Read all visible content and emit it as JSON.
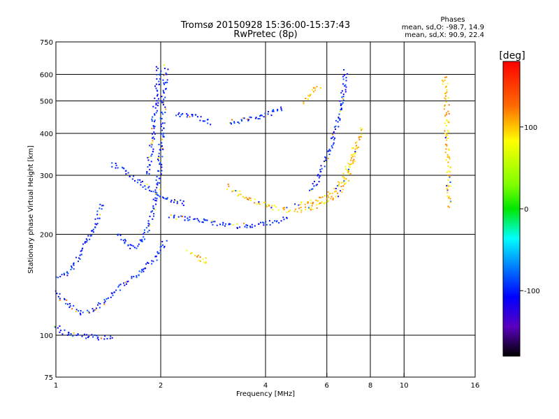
{
  "chart_data": {
    "type": "scatter",
    "title": "Tromsø 20150928 15:36:00-15:37:43",
    "subtitle": "RwPretec (8p)",
    "xlabel": "Frequency [MHz]",
    "ylabel": "Stationary phase Virtual Height [km]",
    "x_scale": "log",
    "y_scale": "log",
    "xlim": [
      1,
      16
    ],
    "ylim": [
      75,
      750
    ],
    "x_ticks": [
      1,
      2,
      4,
      6,
      8,
      10,
      16
    ],
    "x_tick_labels": [
      "1",
      "2",
      "4",
      "6",
      "8",
      "10",
      "16"
    ],
    "y_ticks": [
      75,
      100,
      200,
      300,
      400,
      500,
      600,
      750
    ],
    "y_tick_labels": [
      "75",
      "100",
      "200",
      "300",
      "400",
      "500",
      "600",
      "750"
    ],
    "grid": true,
    "stats": {
      "heading": "Phases",
      "line_o": "mean, sd,O: -98.7, 14.9",
      "line_x": "mean, sd,X:  90.9, 22.4"
    },
    "colorbar": {
      "label": "[deg]",
      "range": [
        -180,
        180
      ],
      "ticks": [
        100,
        0,
        -100
      ],
      "tick_labels": [
        "100",
        "0",
        "-100"
      ],
      "colormap": "rainbow"
    },
    "traces": [
      {
        "name": "",
        "phase": -100,
        "points": [
          [
            1.0,
            108
          ],
          [
            1.03,
            104
          ],
          [
            1.06,
            102
          ],
          [
            1.1,
            101
          ],
          [
            1.15,
            100
          ],
          [
            1.2,
            100
          ],
          [
            1.28,
            99
          ],
          [
            1.35,
            99
          ],
          [
            1.45,
            100
          ]
        ]
      },
      {
        "name": "",
        "phase": -100,
        "points": [
          [
            1.0,
            135
          ],
          [
            1.05,
            128
          ],
          [
            1.1,
            122
          ],
          [
            1.15,
            118
          ],
          [
            1.2,
            117
          ],
          [
            1.25,
            118
          ],
          [
            1.3,
            121
          ],
          [
            1.36,
            126
          ],
          [
            1.42,
            132
          ],
          [
            1.5,
            138
          ],
          [
            1.6,
            145
          ],
          [
            1.7,
            152
          ],
          [
            1.8,
            158
          ],
          [
            1.9,
            168
          ],
          [
            2.0,
            180
          ],
          [
            2.05,
            195
          ]
        ]
      },
      {
        "name": "",
        "phase": -100,
        "points": [
          [
            1.0,
            150
          ],
          [
            1.08,
            155
          ],
          [
            1.15,
            170
          ],
          [
            1.22,
            190
          ],
          [
            1.28,
            210
          ],
          [
            1.32,
            230
          ],
          [
            1.36,
            250
          ]
        ]
      },
      {
        "name": "",
        "phase": -100,
        "points": [
          [
            1.5,
            200
          ],
          [
            1.58,
            190
          ],
          [
            1.65,
            182
          ],
          [
            1.72,
            185
          ],
          [
            1.8,
            200
          ],
          [
            1.86,
            220
          ],
          [
            1.92,
            250
          ],
          [
            1.96,
            290
          ],
          [
            1.99,
            350
          ],
          [
            2.01,
            420
          ],
          [
            2.03,
            500
          ],
          [
            2.05,
            580
          ],
          [
            2.06,
            640
          ]
        ]
      },
      {
        "name": "",
        "phase": -100,
        "points": [
          [
            1.82,
            300
          ],
          [
            1.87,
            360
          ],
          [
            1.9,
            420
          ],
          [
            1.93,
            500
          ],
          [
            1.95,
            580
          ],
          [
            1.97,
            640
          ]
        ]
      },
      {
        "name": "",
        "phase": -100,
        "points": [
          [
            1.45,
            325
          ],
          [
            1.55,
            315
          ],
          [
            1.62,
            300
          ],
          [
            1.7,
            290
          ],
          [
            1.8,
            280
          ],
          [
            1.9,
            270
          ],
          [
            2.0,
            262
          ],
          [
            2.1,
            255
          ],
          [
            2.2,
            252
          ],
          [
            2.35,
            248
          ]
        ]
      },
      {
        "name": "",
        "phase": -100,
        "points": [
          [
            2.1,
            228
          ],
          [
            2.3,
            225
          ],
          [
            2.5,
            222
          ],
          [
            2.7,
            220
          ],
          [
            2.9,
            216
          ],
          [
            3.1,
            213
          ],
          [
            3.4,
            213
          ],
          [
            3.7,
            214
          ],
          [
            4.0,
            216
          ],
          [
            4.3,
            220
          ],
          [
            4.6,
            226
          ]
        ]
      },
      {
        "name": "",
        "phase": -100,
        "points": [
          [
            2.2,
            460
          ],
          [
            2.4,
            455
          ],
          [
            2.55,
            448
          ],
          [
            2.7,
            440
          ],
          [
            2.8,
            432
          ]
        ]
      },
      {
        "name": "",
        "phase": -100,
        "points": [
          [
            3.1,
            432
          ],
          [
            3.3,
            437
          ],
          [
            3.55,
            442
          ],
          [
            3.8,
            450
          ],
          [
            4.05,
            460
          ],
          [
            4.3,
            470
          ],
          [
            4.5,
            480
          ]
        ]
      },
      {
        "name": "",
        "phase": -100,
        "points": [
          [
            5.3,
            270
          ],
          [
            5.6,
            290
          ],
          [
            5.9,
            330
          ],
          [
            6.2,
            380
          ],
          [
            6.4,
            430
          ],
          [
            6.6,
            500
          ],
          [
            6.7,
            560
          ],
          [
            6.8,
            620
          ]
        ]
      },
      {
        "name": "",
        "phase": 100,
        "points": [
          [
            3.1,
            280
          ],
          [
            3.3,
            268
          ],
          [
            3.55,
            258
          ],
          [
            3.8,
            250
          ],
          [
            4.1,
            243
          ],
          [
            4.5,
            238
          ],
          [
            4.9,
            237
          ],
          [
            5.3,
            240
          ],
          [
            5.7,
            246
          ],
          [
            6.1,
            256
          ],
          [
            6.5,
            270
          ],
          [
            6.9,
            300
          ],
          [
            7.2,
            345
          ],
          [
            7.4,
            390
          ],
          [
            7.45,
            420
          ]
        ]
      },
      {
        "name": "",
        "phase": 100,
        "points": [
          [
            4.9,
            245
          ],
          [
            5.3,
            250
          ],
          [
            5.7,
            256
          ],
          [
            6.1,
            266
          ],
          [
            6.5,
            285
          ],
          [
            6.9,
            320
          ],
          [
            7.2,
            370
          ]
        ]
      },
      {
        "name": "",
        "phase": 100,
        "points": [
          [
            2.4,
            178
          ],
          [
            2.55,
            172
          ],
          [
            2.65,
            166
          ],
          [
            2.75,
            170
          ]
        ]
      },
      {
        "name": "",
        "phase": 100,
        "points": [
          [
            5.1,
            500
          ],
          [
            5.3,
            520
          ],
          [
            5.5,
            540
          ],
          [
            5.7,
            560
          ]
        ]
      },
      {
        "name": "",
        "phase": 100,
        "points": [
          [
            13.0,
            600
          ],
          [
            13.1,
            540
          ],
          [
            13.2,
            480
          ],
          [
            13.2,
            420
          ],
          [
            13.3,
            380
          ],
          [
            13.3,
            330
          ],
          [
            13.4,
            290
          ],
          [
            13.4,
            240
          ]
        ]
      }
    ]
  }
}
